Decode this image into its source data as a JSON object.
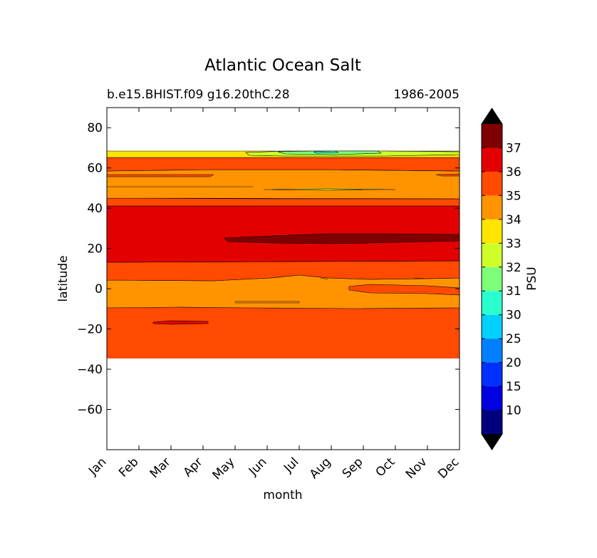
{
  "chart_data": {
    "type": "contour",
    "title": "Atlantic Ocean Salt",
    "subtitle_left": "b.e15.BHIST.f09 g16.20thC.28",
    "subtitle_right": "1986-2005",
    "xlabel": "month",
    "ylabel": "latitude",
    "x_categories": [
      "Jan",
      "Feb",
      "Mar",
      "Apr",
      "May",
      "Jun",
      "Jul",
      "Aug",
      "Sep",
      "Oct",
      "Nov",
      "Dec"
    ],
    "ylim": [
      -80,
      90
    ],
    "y_ticks": [
      80,
      60,
      40,
      20,
      0,
      -20,
      -40,
      -60
    ],
    "y_tick_labels": [
      "80",
      "60",
      "40",
      "20",
      "0",
      "−20",
      "−40",
      "−60"
    ],
    "data_extent_latitude": [
      -34,
      69
    ],
    "colorbar": {
      "label": "PSU",
      "levels": [
        5,
        10,
        15,
        20,
        25,
        30,
        31,
        32,
        33,
        34,
        35,
        36,
        37,
        38
      ],
      "tick_labels": [
        "10",
        "15",
        "20",
        "25",
        "30",
        "31",
        "32",
        "33",
        "34",
        "35",
        "36",
        "37"
      ],
      "colors": [
        "#00007f",
        "#0000e0",
        "#0030ff",
        "#0080ff",
        "#00d0ff",
        "#29ffce",
        "#7dff7a",
        "#ceff29",
        "#ffe500",
        "#ff9400",
        "#ff4a00",
        "#e30000",
        "#7f0000"
      ],
      "extend_low_color": "#000000",
      "extend_high_color": "#000000"
    },
    "bands": [
      {
        "lat_range": [
          -34,
          -9
        ],
        "salinity_range": "35-36"
      },
      {
        "lat_range": [
          -9,
          5
        ],
        "salinity_range": "34-35"
      },
      {
        "lat_range": [
          5,
          14
        ],
        "salinity_range": "35-36"
      },
      {
        "lat_range": [
          14,
          41
        ],
        "salinity_range": "36-37"
      },
      {
        "lat_range": [
          23,
          27
        ],
        "months": "May-Dec",
        "salinity_range": "37-38"
      },
      {
        "lat_range": [
          41,
          45
        ],
        "salinity_range": "35-36"
      },
      {
        "lat_range": [
          45,
          59
        ],
        "salinity_range": "34-35"
      },
      {
        "lat_range": [
          59,
          65
        ],
        "salinity_range": "35-36"
      },
      {
        "lat_range": [
          65,
          69
        ],
        "salinity_range": "32-34"
      },
      {
        "lat_range": [
          67,
          69
        ],
        "months": "Jun-Oct",
        "salinity_range": "30-32"
      }
    ],
    "grid": false
  }
}
